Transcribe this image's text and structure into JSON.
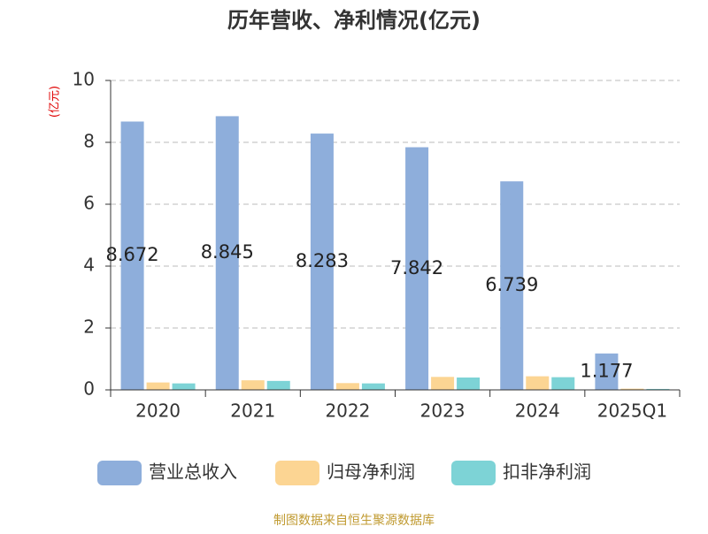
{
  "chart_data": {
    "type": "bar",
    "title": "历年营收、净利情况(亿元)",
    "y_axis_label": "(亿元)",
    "categories": [
      "2020",
      "2021",
      "2022",
      "2023",
      "2024",
      "2025Q1"
    ],
    "series": [
      {
        "name": "营业总收入",
        "color": "#8eaedb",
        "values": [
          8.672,
          8.845,
          8.283,
          7.842,
          6.739,
          1.177
        ],
        "show_labels": true
      },
      {
        "name": "归母净利润",
        "color": "#fcd593",
        "values": [
          0.24,
          0.31,
          0.22,
          0.42,
          0.44,
          0.04
        ]
      },
      {
        "name": "扣非净利润",
        "color": "#7dd3d6",
        "values": [
          0.21,
          0.29,
          0.21,
          0.4,
          0.41,
          0.03
        ]
      }
    ],
    "ylim": [
      0,
      10
    ],
    "yticks": [
      0,
      2,
      4,
      6,
      8,
      10
    ],
    "grid": true,
    "legend": "bottom",
    "source": "制图数据来自恒生聚源数据库"
  }
}
